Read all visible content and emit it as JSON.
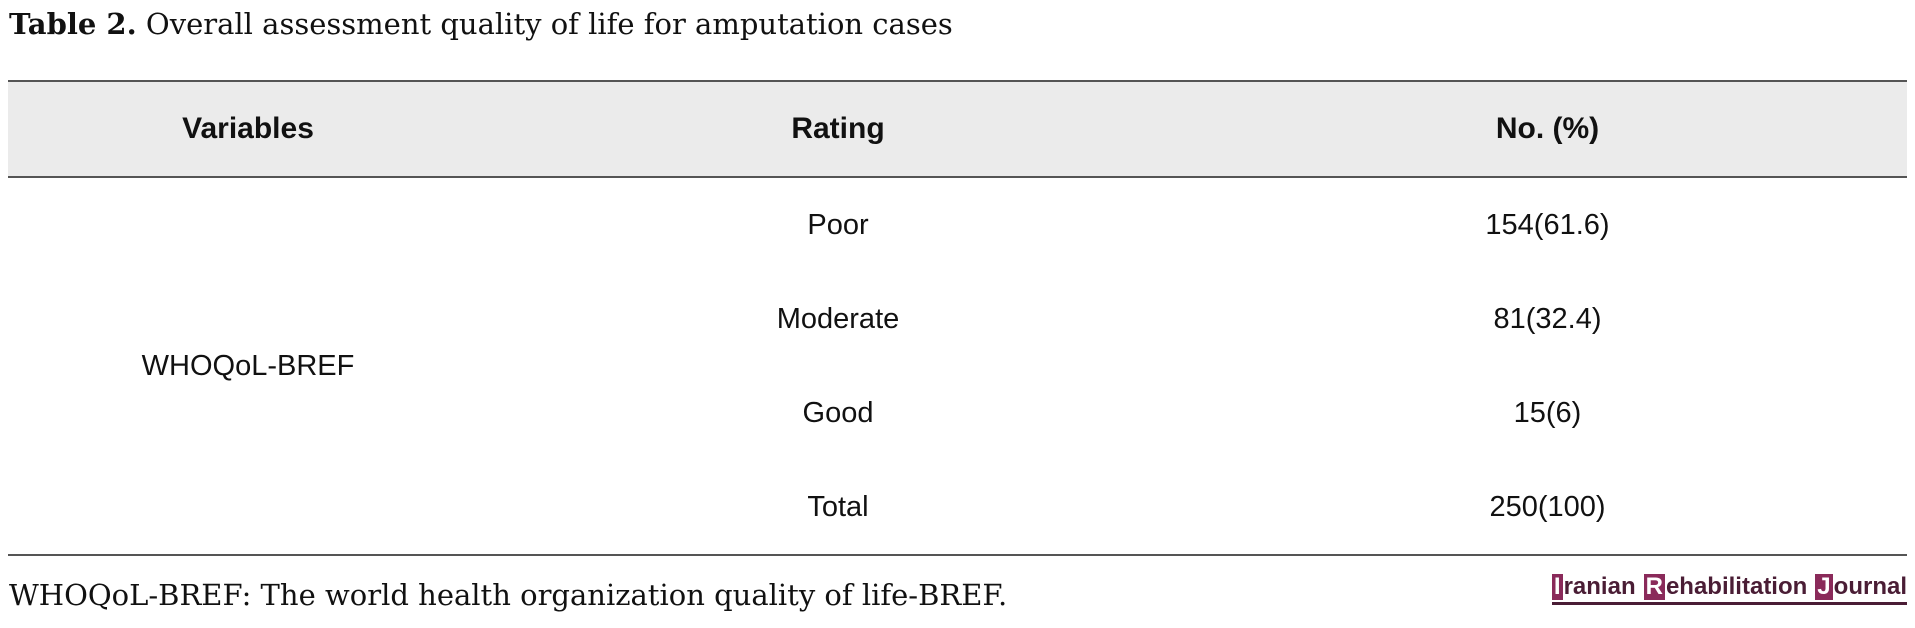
{
  "caption": {
    "label": "Table 2.",
    "text": " Overall assessment quality of life for amputation cases"
  },
  "table": {
    "headers": {
      "variables": "Variables",
      "rating": "Rating",
      "number": "No. (%)"
    },
    "variable": "WHOQoL-BREF",
    "rows": [
      {
        "rating": "Poor",
        "value": "154(61.6)"
      },
      {
        "rating": "Moderate",
        "value": "81(32.4)"
      },
      {
        "rating": "Good",
        "value": "15(6)"
      },
      {
        "rating": "Total",
        "value": "250(100)"
      }
    ]
  },
  "footnote": "WHOQoL-BREF: The world health organization quality of life-BREF.",
  "journal": {
    "word1_initial": "I",
    "word1_rest": "ranian",
    "word2_initial": "R",
    "word2_rest": "ehabilitation",
    "word3_initial": "J",
    "word3_rest": "ournal",
    "accent_color": "#8a2a5a",
    "text_color": "#4a1d35"
  },
  "colors": {
    "header_background": "#ebebeb",
    "rule": "#555555"
  }
}
